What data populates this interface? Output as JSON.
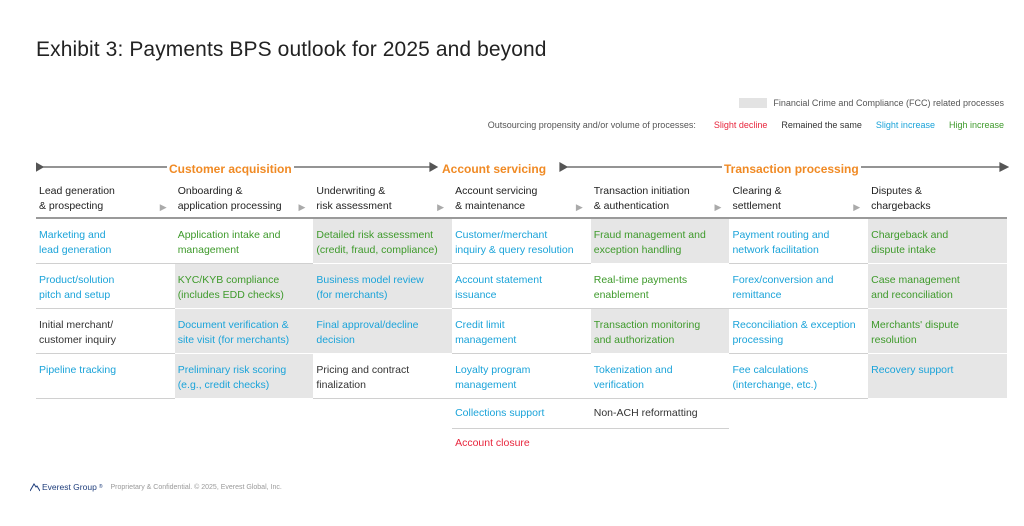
{
  "title": "Exhibit 3: Payments BPS outlook for 2025 and beyond",
  "legend": {
    "fcc_label": "Financial Crime and Compliance (FCC) related processes",
    "outsourcing_label": "Outsourcing propensity and/or volume of processes:",
    "slight_decline": "Slight decline",
    "remained_same": "Remained the same",
    "slight_increase": "Slight increase",
    "high_increase": "High increase",
    "colors": {
      "slight_decline": "#e8263d",
      "remained_same": "#333333",
      "slight_increase": "#1aa3d9",
      "high_increase": "#3e9a2b",
      "phase": "#f08a24",
      "fcc": "#e6e6e6"
    }
  },
  "phases": [
    "Customer acquisition",
    "Account servicing",
    "Transaction processing"
  ],
  "columns": [
    {
      "header": [
        "Lead generation",
        "& prospecting"
      ],
      "cells": [
        {
          "text": [
            "Marketing and",
            "lead generation"
          ],
          "status": "increase",
          "fcc": false
        },
        {
          "text": [
            "Product/solution",
            "pitch and setup"
          ],
          "status": "increase",
          "fcc": false
        },
        {
          "text": [
            "Initial merchant/",
            "customer inquiry"
          ],
          "status": "same",
          "fcc": false
        },
        {
          "text": [
            "Pipeline tracking",
            ""
          ],
          "status": "increase",
          "fcc": false
        }
      ]
    },
    {
      "header": [
        "Onboarding &",
        "application processing"
      ],
      "cells": [
        {
          "text": [
            "Application intake and",
            "management"
          ],
          "status": "high",
          "fcc": false
        },
        {
          "text": [
            "KYC/KYB compliance",
            "(includes EDD checks)"
          ],
          "status": "high",
          "fcc": true
        },
        {
          "text": [
            "Document verification &",
            "site visit (for merchants)"
          ],
          "status": "increase",
          "fcc": true
        },
        {
          "text": [
            "Preliminary risk scoring",
            "(e.g., credit checks)"
          ],
          "status": "increase",
          "fcc": true
        }
      ]
    },
    {
      "header": [
        "Underwriting &",
        "risk assessment"
      ],
      "cells": [
        {
          "text": [
            "Detailed risk assessment",
            "(credit, fraud, compliance)"
          ],
          "status": "high",
          "fcc": true
        },
        {
          "text": [
            "Business model review",
            "(for merchants)"
          ],
          "status": "increase",
          "fcc": true
        },
        {
          "text": [
            "Final approval/decline",
            "decision"
          ],
          "status": "increase",
          "fcc": true
        },
        {
          "text": [
            "Pricing and contract",
            "finalization"
          ],
          "status": "same",
          "fcc": false
        }
      ]
    },
    {
      "header": [
        "Account servicing",
        "& maintenance"
      ],
      "cells": [
        {
          "text": [
            "Customer/merchant",
            "inquiry & query resolution"
          ],
          "status": "increase",
          "fcc": false
        },
        {
          "text": [
            "Account statement",
            "issuance"
          ],
          "status": "increase",
          "fcc": false
        },
        {
          "text": [
            "Credit limit",
            "management"
          ],
          "status": "increase",
          "fcc": false
        },
        {
          "text": [
            "Loyalty program",
            "management"
          ],
          "status": "increase",
          "fcc": false
        },
        {
          "text": [
            "Collections support",
            ""
          ],
          "status": "increase",
          "fcc": false,
          "short": true
        },
        {
          "text": [
            "Account closure",
            ""
          ],
          "status": "decline",
          "fcc": false,
          "short": true,
          "noborder": true
        }
      ]
    },
    {
      "header": [
        "Transaction initiation",
        "& authentication"
      ],
      "cells": [
        {
          "text": [
            "Fraud management and",
            "exception handling"
          ],
          "status": "high",
          "fcc": true
        },
        {
          "text": [
            "Real-time payments",
            "enablement"
          ],
          "status": "high",
          "fcc": false
        },
        {
          "text": [
            "Transaction monitoring",
            "and authorization"
          ],
          "status": "high",
          "fcc": true
        },
        {
          "text": [
            "Tokenization and",
            "verification"
          ],
          "status": "increase",
          "fcc": false
        },
        {
          "text": [
            "Non-ACH reformatting",
            ""
          ],
          "status": "same",
          "fcc": false,
          "short": true
        }
      ]
    },
    {
      "header": [
        "Clearing &",
        "settlement"
      ],
      "cells": [
        {
          "text": [
            "Payment routing and",
            "network facilitation"
          ],
          "status": "increase",
          "fcc": false
        },
        {
          "text": [
            "Forex/conversion and",
            "remittance"
          ],
          "status": "increase",
          "fcc": false
        },
        {
          "text": [
            "Reconciliation & exception",
            "processing"
          ],
          "status": "increase",
          "fcc": false
        },
        {
          "text": [
            "Fee calculations",
            "(interchange, etc.)"
          ],
          "status": "increase",
          "fcc": false
        }
      ]
    },
    {
      "header": [
        "Disputes &",
        "chargebacks"
      ],
      "cells": [
        {
          "text": [
            "Chargeback and",
            "dispute intake"
          ],
          "status": "high",
          "fcc": true
        },
        {
          "text": [
            "Case management",
            "and reconciliation"
          ],
          "status": "high",
          "fcc": true
        },
        {
          "text": [
            "Merchants' dispute",
            "resolution"
          ],
          "status": "high",
          "fcc": true
        },
        {
          "text": [
            "Recovery support",
            ""
          ],
          "status": "increase",
          "fcc": true
        }
      ]
    }
  ],
  "footer": {
    "logo": "Everest Group",
    "logo_mark": "®",
    "copyright": "Proprietary & Confidential. © 2025, Everest Global, Inc."
  }
}
